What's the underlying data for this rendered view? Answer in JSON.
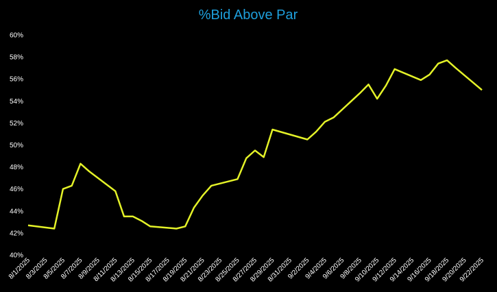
{
  "chart_data": {
    "type": "line",
    "title": "%Bid Above Par",
    "x": [
      "8/1/2025",
      "8/4/2025",
      "8/5/2025",
      "8/6/2025",
      "8/7/2025",
      "8/8/2025",
      "8/11/2025",
      "8/12/2025",
      "8/13/2025",
      "8/14/2025",
      "8/15/2025",
      "8/18/2025",
      "8/19/2025",
      "8/20/2025",
      "8/21/2025",
      "8/22/2025",
      "8/25/2025",
      "8/26/2025",
      "8/27/2025",
      "8/28/2025",
      "8/29/2025",
      "9/2/2025",
      "9/3/2025",
      "9/4/2025",
      "9/5/2025",
      "9/8/2025",
      "9/9/2025",
      "9/10/2025",
      "9/11/2025",
      "9/12/2025",
      "9/15/2025",
      "9/16/2025",
      "9/17/2025",
      "9/18/2025",
      "9/19/2025",
      "9/22/2025"
    ],
    "series": [
      {
        "name": "%Bid Above Par",
        "color": "#e4f228",
        "values": [
          42.7,
          42.4,
          46.0,
          46.3,
          48.3,
          47.6,
          45.8,
          43.5,
          43.5,
          43.1,
          42.6,
          42.4,
          42.6,
          44.3,
          45.4,
          46.3,
          46.9,
          48.8,
          49.5,
          48.9,
          51.4,
          50.5,
          51.2,
          52.1,
          52.5,
          54.7,
          55.5,
          54.2,
          55.4,
          56.9,
          55.9,
          56.4,
          57.4,
          57.7,
          57.0,
          55.0
        ]
      }
    ],
    "xlim": [
      "8/1/2025",
      "9/22/2025"
    ],
    "xticks": [
      "8/1/2025",
      "8/3/2025",
      "8/5/2025",
      "8/7/2025",
      "8/9/2025",
      "8/11/2025",
      "8/13/2025",
      "8/15/2025",
      "8/17/2025",
      "8/19/2025",
      "8/21/2025",
      "8/23/2025",
      "8/25/2025",
      "8/27/2025",
      "8/29/2025",
      "8/31/2025",
      "9/2/2025",
      "9/4/2025",
      "9/6/2025",
      "9/8/2025",
      "9/10/2025",
      "9/12/2025",
      "9/14/2025",
      "9/16/2025",
      "9/18/2025",
      "9/20/2025",
      "9/22/2025"
    ],
    "ylim": [
      40,
      60
    ],
    "yticks": [
      {
        "value": 40,
        "label": "40%"
      },
      {
        "value": 42,
        "label": "42%"
      },
      {
        "value": 44,
        "label": "44%"
      },
      {
        "value": 46,
        "label": "46%"
      },
      {
        "value": 48,
        "label": "48%"
      },
      {
        "value": 50,
        "label": "50%"
      },
      {
        "value": 52,
        "label": "52%"
      },
      {
        "value": 54,
        "label": "54%"
      },
      {
        "value": 56,
        "label": "56%"
      },
      {
        "value": 58,
        "label": "58%"
      },
      {
        "value": 60,
        "label": "60%"
      }
    ],
    "title_color": "#1e9fdc",
    "text_color": "#ffffff",
    "background": "#000000"
  }
}
